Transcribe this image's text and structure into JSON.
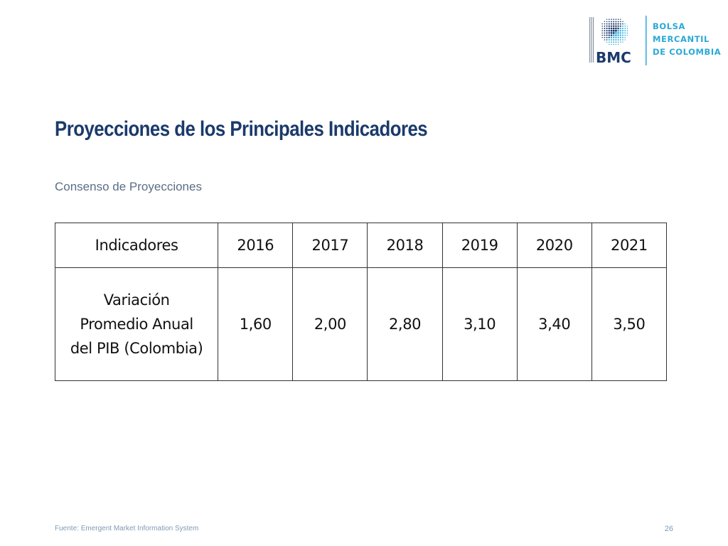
{
  "logo": {
    "abbreviation": "BMC",
    "wordmark": [
      "BOLSA",
      "MERCANTIL",
      "DE COLOMBIA"
    ],
    "color_primary": "#1b3a6b",
    "color_accent": "#2aa9d6"
  },
  "title": "Proyecciones de los Principales Indicadores",
  "subtitle": "Consenso de Proyecciones",
  "table": {
    "headers": [
      "Indicadores",
      "2016",
      "2017",
      "2018",
      "2019",
      "2020",
      "2021"
    ],
    "rows": [
      {
        "label_lines": [
          "Variación",
          "Promedio Anual",
          "del PIB (Colombia)"
        ],
        "values": [
          "1,60",
          "2,00",
          "2,80",
          "3,10",
          "3,40",
          "3,50"
        ]
      }
    ]
  },
  "footer": {
    "source": "Fuente: Emergent Market Information System",
    "page_number": "26"
  },
  "colors": {
    "title": "#1b3a6b",
    "subtitle": "#5a6e85",
    "footer": "#7f9bb5",
    "table_border": "#333333"
  }
}
